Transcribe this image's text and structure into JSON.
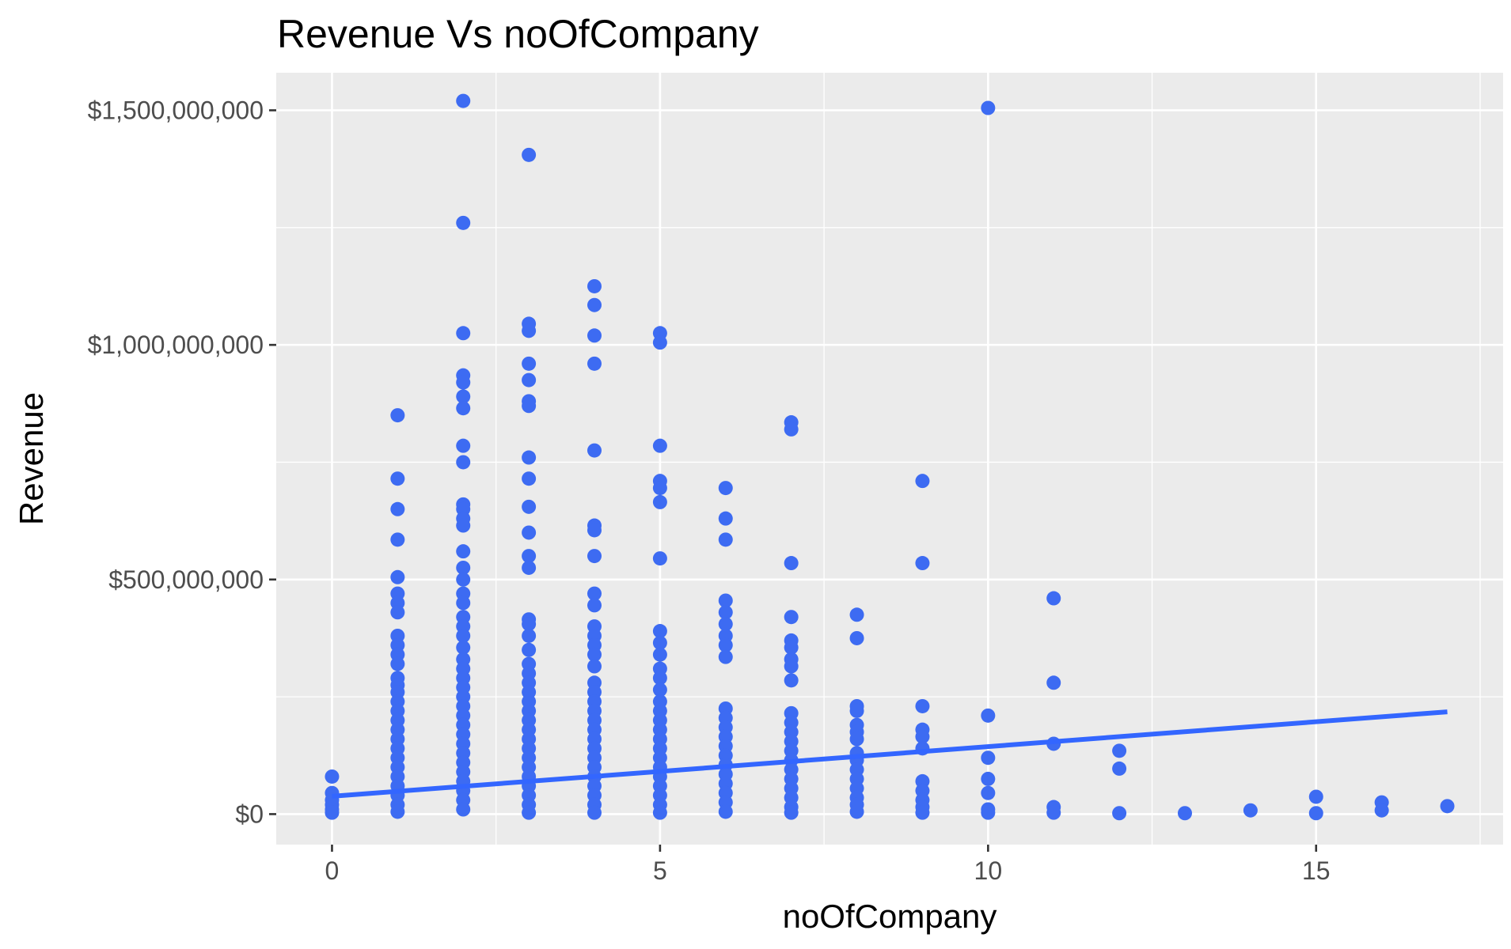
{
  "chart_data": {
    "type": "scatter",
    "title": "Revenue Vs noOfCompany",
    "xlabel": "noOfCompany",
    "ylabel": "Revenue",
    "xlim": [
      -0.85,
      17.85
    ],
    "ylim": [
      -65000000,
      1580000000
    ],
    "x_ticks": [
      0,
      5,
      10,
      15
    ],
    "x_tick_labels": [
      "0",
      "5",
      "10",
      "15"
    ],
    "y_ticks": [
      0,
      500000000,
      1000000000,
      1500000000
    ],
    "y_tick_labels": [
      "$0",
      "$500,000,000",
      "$1,000,000,000",
      "$1,500,000,000"
    ],
    "grid": true,
    "background": "#ebebeb",
    "point_color": "#3d6bf2",
    "line_color": "#3366ff",
    "fit_line": {
      "x": [
        0,
        17
      ],
      "y": [
        38000000,
        218000000
      ]
    },
    "series": [
      {
        "points": [
          [
            0,
            80000000
          ],
          [
            0,
            45000000
          ],
          [
            0,
            30000000
          ],
          [
            0,
            20000000
          ],
          [
            0,
            10000000
          ],
          [
            0,
            3000000
          ],
          [
            1,
            850000000
          ],
          [
            1,
            715000000
          ],
          [
            1,
            650000000
          ],
          [
            1,
            585000000
          ],
          [
            1,
            505000000
          ],
          [
            1,
            470000000
          ],
          [
            1,
            450000000
          ],
          [
            1,
            430000000
          ],
          [
            1,
            380000000
          ],
          [
            1,
            360000000
          ],
          [
            1,
            340000000
          ],
          [
            1,
            320000000
          ],
          [
            1,
            290000000
          ],
          [
            1,
            275000000
          ],
          [
            1,
            260000000
          ],
          [
            1,
            240000000
          ],
          [
            1,
            220000000
          ],
          [
            1,
            200000000
          ],
          [
            1,
            180000000
          ],
          [
            1,
            160000000
          ],
          [
            1,
            140000000
          ],
          [
            1,
            120000000
          ],
          [
            1,
            100000000
          ],
          [
            1,
            80000000
          ],
          [
            1,
            60000000
          ],
          [
            1,
            40000000
          ],
          [
            1,
            20000000
          ],
          [
            1,
            5000000
          ],
          [
            2,
            1520000000
          ],
          [
            2,
            1260000000
          ],
          [
            2,
            1025000000
          ],
          [
            2,
            935000000
          ],
          [
            2,
            920000000
          ],
          [
            2,
            890000000
          ],
          [
            2,
            865000000
          ],
          [
            2,
            785000000
          ],
          [
            2,
            750000000
          ],
          [
            2,
            660000000
          ],
          [
            2,
            650000000
          ],
          [
            2,
            630000000
          ],
          [
            2,
            615000000
          ],
          [
            2,
            560000000
          ],
          [
            2,
            525000000
          ],
          [
            2,
            500000000
          ],
          [
            2,
            470000000
          ],
          [
            2,
            450000000
          ],
          [
            2,
            420000000
          ],
          [
            2,
            400000000
          ],
          [
            2,
            380000000
          ],
          [
            2,
            355000000
          ],
          [
            2,
            330000000
          ],
          [
            2,
            310000000
          ],
          [
            2,
            290000000
          ],
          [
            2,
            270000000
          ],
          [
            2,
            250000000
          ],
          [
            2,
            230000000
          ],
          [
            2,
            210000000
          ],
          [
            2,
            190000000
          ],
          [
            2,
            170000000
          ],
          [
            2,
            150000000
          ],
          [
            2,
            130000000
          ],
          [
            2,
            110000000
          ],
          [
            2,
            90000000
          ],
          [
            2,
            70000000
          ],
          [
            2,
            50000000
          ],
          [
            2,
            30000000
          ],
          [
            2,
            10000000
          ],
          [
            3,
            1405000000
          ],
          [
            3,
            1045000000
          ],
          [
            3,
            1030000000
          ],
          [
            3,
            960000000
          ],
          [
            3,
            925000000
          ],
          [
            3,
            880000000
          ],
          [
            3,
            870000000
          ],
          [
            3,
            760000000
          ],
          [
            3,
            715000000
          ],
          [
            3,
            655000000
          ],
          [
            3,
            600000000
          ],
          [
            3,
            550000000
          ],
          [
            3,
            525000000
          ],
          [
            3,
            415000000
          ],
          [
            3,
            405000000
          ],
          [
            3,
            380000000
          ],
          [
            3,
            350000000
          ],
          [
            3,
            320000000
          ],
          [
            3,
            300000000
          ],
          [
            3,
            280000000
          ],
          [
            3,
            260000000
          ],
          [
            3,
            240000000
          ],
          [
            3,
            220000000
          ],
          [
            3,
            200000000
          ],
          [
            3,
            180000000
          ],
          [
            3,
            160000000
          ],
          [
            3,
            140000000
          ],
          [
            3,
            120000000
          ],
          [
            3,
            100000000
          ],
          [
            3,
            80000000
          ],
          [
            3,
            60000000
          ],
          [
            3,
            40000000
          ],
          [
            3,
            20000000
          ],
          [
            3,
            3000000
          ],
          [
            4,
            1125000000
          ],
          [
            4,
            1085000000
          ],
          [
            4,
            1020000000
          ],
          [
            4,
            960000000
          ],
          [
            4,
            775000000
          ],
          [
            4,
            615000000
          ],
          [
            4,
            605000000
          ],
          [
            4,
            550000000
          ],
          [
            4,
            470000000
          ],
          [
            4,
            445000000
          ],
          [
            4,
            400000000
          ],
          [
            4,
            380000000
          ],
          [
            4,
            360000000
          ],
          [
            4,
            340000000
          ],
          [
            4,
            315000000
          ],
          [
            4,
            280000000
          ],
          [
            4,
            260000000
          ],
          [
            4,
            240000000
          ],
          [
            4,
            220000000
          ],
          [
            4,
            200000000
          ],
          [
            4,
            180000000
          ],
          [
            4,
            160000000
          ],
          [
            4,
            140000000
          ],
          [
            4,
            120000000
          ],
          [
            4,
            100000000
          ],
          [
            4,
            80000000
          ],
          [
            4,
            60000000
          ],
          [
            4,
            40000000
          ],
          [
            4,
            20000000
          ],
          [
            4,
            3000000
          ],
          [
            5,
            1025000000
          ],
          [
            5,
            1005000000
          ],
          [
            5,
            785000000
          ],
          [
            5,
            710000000
          ],
          [
            5,
            695000000
          ],
          [
            5,
            665000000
          ],
          [
            5,
            545000000
          ],
          [
            5,
            390000000
          ],
          [
            5,
            365000000
          ],
          [
            5,
            340000000
          ],
          [
            5,
            310000000
          ],
          [
            5,
            290000000
          ],
          [
            5,
            265000000
          ],
          [
            5,
            240000000
          ],
          [
            5,
            220000000
          ],
          [
            5,
            200000000
          ],
          [
            5,
            180000000
          ],
          [
            5,
            160000000
          ],
          [
            5,
            140000000
          ],
          [
            5,
            120000000
          ],
          [
            5,
            100000000
          ],
          [
            5,
            80000000
          ],
          [
            5,
            60000000
          ],
          [
            5,
            40000000
          ],
          [
            5,
            20000000
          ],
          [
            5,
            3000000
          ],
          [
            6,
            695000000
          ],
          [
            6,
            630000000
          ],
          [
            6,
            585000000
          ],
          [
            6,
            455000000
          ],
          [
            6,
            430000000
          ],
          [
            6,
            405000000
          ],
          [
            6,
            380000000
          ],
          [
            6,
            360000000
          ],
          [
            6,
            335000000
          ],
          [
            6,
            225000000
          ],
          [
            6,
            205000000
          ],
          [
            6,
            185000000
          ],
          [
            6,
            165000000
          ],
          [
            6,
            145000000
          ],
          [
            6,
            125000000
          ],
          [
            6,
            105000000
          ],
          [
            6,
            85000000
          ],
          [
            6,
            65000000
          ],
          [
            6,
            45000000
          ],
          [
            6,
            25000000
          ],
          [
            6,
            5000000
          ],
          [
            7,
            835000000
          ],
          [
            7,
            820000000
          ],
          [
            7,
            535000000
          ],
          [
            7,
            420000000
          ],
          [
            7,
            370000000
          ],
          [
            7,
            355000000
          ],
          [
            7,
            330000000
          ],
          [
            7,
            315000000
          ],
          [
            7,
            285000000
          ],
          [
            7,
            215000000
          ],
          [
            7,
            195000000
          ],
          [
            7,
            175000000
          ],
          [
            7,
            155000000
          ],
          [
            7,
            135000000
          ],
          [
            7,
            115000000
          ],
          [
            7,
            95000000
          ],
          [
            7,
            75000000
          ],
          [
            7,
            55000000
          ],
          [
            7,
            35000000
          ],
          [
            7,
            15000000
          ],
          [
            7,
            3000000
          ],
          [
            8,
            425000000
          ],
          [
            8,
            375000000
          ],
          [
            8,
            230000000
          ],
          [
            8,
            220000000
          ],
          [
            8,
            190000000
          ],
          [
            8,
            175000000
          ],
          [
            8,
            160000000
          ],
          [
            8,
            130000000
          ],
          [
            8,
            115000000
          ],
          [
            8,
            95000000
          ],
          [
            8,
            75000000
          ],
          [
            8,
            55000000
          ],
          [
            8,
            35000000
          ],
          [
            8,
            20000000
          ],
          [
            8,
            5000000
          ],
          [
            9,
            710000000
          ],
          [
            9,
            535000000
          ],
          [
            9,
            230000000
          ],
          [
            9,
            180000000
          ],
          [
            9,
            165000000
          ],
          [
            9,
            140000000
          ],
          [
            9,
            70000000
          ],
          [
            9,
            50000000
          ],
          [
            9,
            30000000
          ],
          [
            9,
            15000000
          ],
          [
            9,
            3000000
          ],
          [
            10,
            1505000000
          ],
          [
            10,
            210000000
          ],
          [
            10,
            120000000
          ],
          [
            10,
            75000000
          ],
          [
            10,
            45000000
          ],
          [
            10,
            10000000
          ],
          [
            10,
            3000000
          ],
          [
            11,
            460000000
          ],
          [
            11,
            280000000
          ],
          [
            11,
            150000000
          ],
          [
            11,
            15000000
          ],
          [
            11,
            3000000
          ],
          [
            12,
            135000000
          ],
          [
            12,
            97000000
          ],
          [
            12,
            2000000
          ],
          [
            13,
            2000000
          ],
          [
            14,
            8000000
          ],
          [
            15,
            37000000
          ],
          [
            15,
            2000000
          ],
          [
            16,
            25000000
          ],
          [
            16,
            8000000
          ],
          [
            17,
            17000000
          ]
        ]
      }
    ]
  }
}
